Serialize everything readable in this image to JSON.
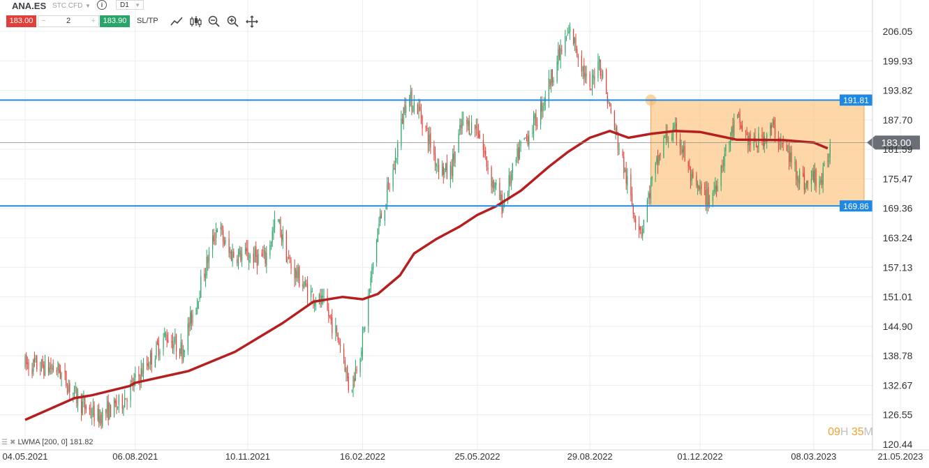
{
  "toolbar": {
    "symbol": "ANA.ES",
    "instrument_type": "STC CFD",
    "info_icon": "info-icon",
    "timeframe": "D1",
    "sell_price": "183.00",
    "quantity": "2",
    "minus": "−",
    "plus": "+",
    "buy_price": "183.90",
    "sltp_label": "SL/TP",
    "tools": [
      "line-chart-icon",
      "candlestick-icon",
      "zoom-out-icon",
      "zoom-in-icon",
      "move-icon"
    ]
  },
  "indicator_legend": {
    "text": "LWMA [200, 0] 181.82"
  },
  "timer": {
    "hours": "09",
    "h_unit": "H",
    "minutes": "35",
    "m_unit": "M"
  },
  "colors": {
    "bull": "#2aa56a",
    "bear": "#e0403a",
    "ma": "#b51f1f",
    "level": "#1e88e5",
    "zone": "#fcc98a",
    "sell": "#e0403a",
    "buy": "#2aa56a"
  },
  "chart_data": {
    "type": "candlestick",
    "y_ticks": [
      "206.05",
      "199.93",
      "193.82",
      "187.70",
      "181.59",
      "175.47",
      "169.36",
      "163.24",
      "157.13",
      "151.01",
      "144.90",
      "138.78",
      "132.67",
      "126.55",
      "120.44"
    ],
    "x_ticks": [
      "04.05.2021",
      "06.08.2021",
      "10.11.2021",
      "16.02.2022",
      "25.05.2022",
      "29.08.2022",
      "01.12.2022",
      "08.03.2023",
      "21.05.2023"
    ],
    "ylim": [
      120.44,
      212.0
    ],
    "current_price": "183.00",
    "levels": [
      {
        "value": 191.81,
        "label": "191.81"
      },
      {
        "value": 169.86,
        "label": "169.86"
      }
    ],
    "consolidation_zone": {
      "from": "20.10.2022",
      "to": "20.04.2023",
      "high": 191.81,
      "low": 169.86
    },
    "ma_series": {
      "name": "LWMA [200, 0]",
      "value": 181.82,
      "points": [
        [
          "04.05.2021",
          125.5
        ],
        [
          "15.06.2021",
          130.0
        ],
        [
          "30.06.2021",
          130.6
        ],
        [
          "01.08.2021",
          132.5
        ],
        [
          "06.08.2021",
          133.2
        ],
        [
          "20.09.2021",
          135.6
        ],
        [
          "30.10.2021",
          139.6
        ],
        [
          "10.11.2021",
          141.2
        ],
        [
          "10.12.2021",
          145.6
        ],
        [
          "05.01.2022",
          150.0
        ],
        [
          "30.01.2022",
          151.0
        ],
        [
          "16.02.2022",
          150.5
        ],
        [
          "01.03.2022",
          151.6
        ],
        [
          "20.03.2022",
          155.5
        ],
        [
          "01.04.2022",
          160.0
        ],
        [
          "20.04.2022",
          163.0
        ],
        [
          "10.05.2022",
          165.6
        ],
        [
          "25.05.2022",
          168.0
        ],
        [
          "10.06.2022",
          169.8
        ],
        [
          "01.07.2022",
          173.0
        ],
        [
          "25.07.2022",
          178.0
        ],
        [
          "10.08.2022",
          181.0
        ],
        [
          "29.08.2022",
          184.0
        ],
        [
          "15.09.2022",
          185.4
        ],
        [
          "01.10.2022",
          184.0
        ],
        [
          "20.10.2022",
          184.8
        ],
        [
          "10.11.2022",
          185.4
        ],
        [
          "01.12.2022",
          185.2
        ],
        [
          "01.01.2023",
          183.6
        ],
        [
          "10.02.2023",
          183.5
        ],
        [
          "08.03.2023",
          183.0
        ],
        [
          "20.03.2023",
          181.8
        ]
      ]
    },
    "price_path": [
      [
        "04.05.2021",
        137.0
      ],
      [
        "01.06.2021",
        136.0
      ],
      [
        "20.06.2021",
        129.0
      ],
      [
        "05.07.2021",
        126.0
      ],
      [
        "25.07.2021",
        129.0
      ],
      [
        "06.08.2021",
        133.5
      ],
      [
        "20.08.2021",
        138.5
      ],
      [
        "01.09.2021",
        143.0
      ],
      [
        "15.09.2021",
        140.0
      ],
      [
        "05.10.2021",
        157.0
      ],
      [
        "15.10.2021",
        166.0
      ],
      [
        "25.10.2021",
        160.0
      ],
      [
        "10.11.2021",
        159.5
      ],
      [
        "25.11.2021",
        159.0
      ],
      [
        "05.12.2021",
        167.5
      ],
      [
        "15.12.2021",
        158.0
      ],
      [
        "01.01.2022",
        152.0
      ],
      [
        "15.01.2022",
        149.0
      ],
      [
        "30.01.2022",
        140.0
      ],
      [
        "05.02.2022",
        131.0
      ],
      [
        "16.02.2022",
        142.0
      ],
      [
        "01.03.2022",
        165.0
      ],
      [
        "15.03.2022",
        178.0
      ],
      [
        "25.03.2022",
        192.5
      ],
      [
        "05.04.2022",
        190.0
      ],
      [
        "20.04.2022",
        179.0
      ],
      [
        "01.05.2022",
        176.0
      ],
      [
        "12.05.2022",
        187.0
      ],
      [
        "25.05.2022",
        186.0
      ],
      [
        "05.06.2022",
        176.0
      ],
      [
        "15.06.2022",
        170.0
      ],
      [
        "01.07.2022",
        182.0
      ],
      [
        "15.07.2022",
        188.0
      ],
      [
        "01.08.2022",
        200.0
      ],
      [
        "12.08.2022",
        206.0
      ],
      [
        "20.08.2022",
        201.0
      ],
      [
        "29.08.2022",
        193.0
      ],
      [
        "05.09.2022",
        201.0
      ],
      [
        "15.09.2022",
        190.0
      ],
      [
        "25.09.2022",
        180.0
      ],
      [
        "05.10.2022",
        169.0
      ],
      [
        "12.10.2022",
        165.0
      ],
      [
        "20.10.2022",
        174.0
      ],
      [
        "01.11.2022",
        184.0
      ],
      [
        "12.11.2022",
        185.0
      ],
      [
        "25.11.2022",
        174.0
      ],
      [
        "10.12.2022",
        171.0
      ],
      [
        "20.12.2022",
        179.0
      ],
      [
        "01.01.2023",
        188.0
      ],
      [
        "15.01.2023",
        182.0
      ],
      [
        "01.02.2023",
        186.0
      ],
      [
        "15.02.2023",
        180.0
      ],
      [
        "01.03.2023",
        174.0
      ],
      [
        "08.03.2023",
        176.0
      ],
      [
        "15.03.2023",
        175.0
      ],
      [
        "22.03.2023",
        182.0
      ]
    ]
  }
}
